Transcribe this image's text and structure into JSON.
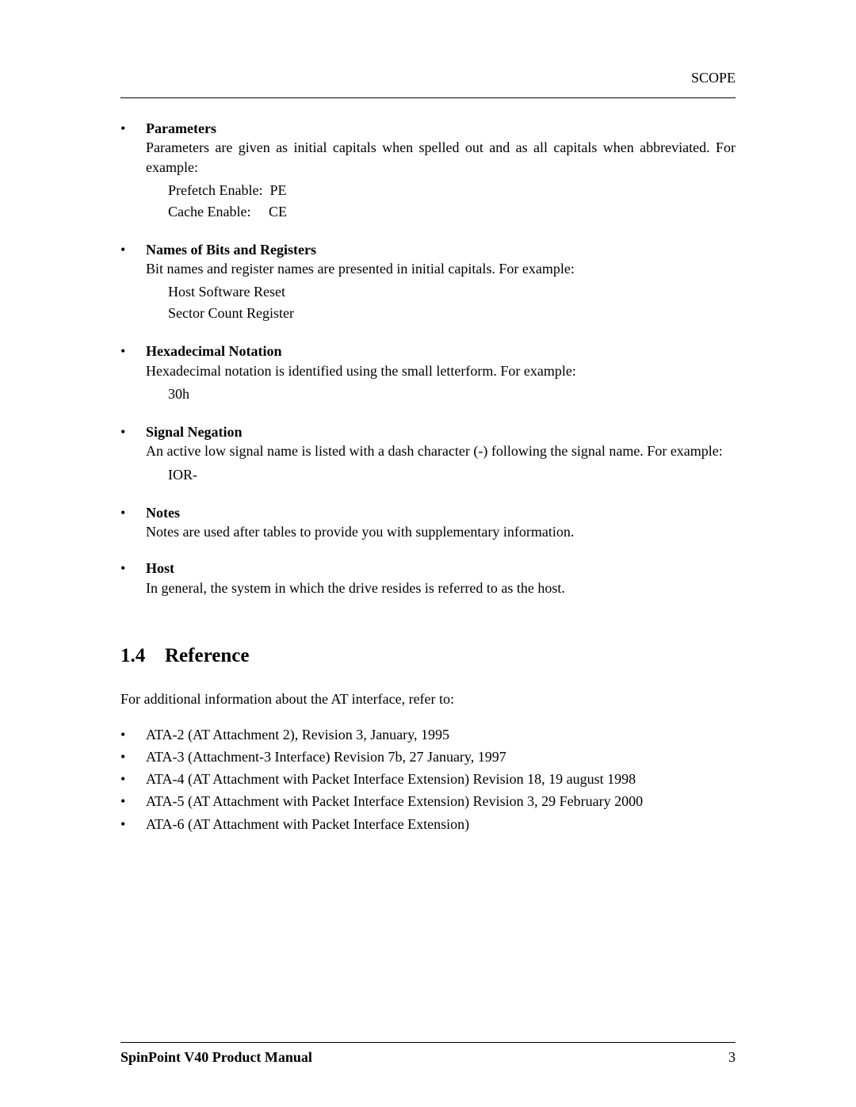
{
  "header": {
    "label": "SCOPE"
  },
  "conventions": [
    {
      "title": "Parameters",
      "desc": "Parameters are given as initial capitals when spelled out and as all capitals when abbreviated. For example:",
      "examples": [
        "Prefetch Enable:  PE",
        "Cache Enable:     CE"
      ],
      "justify": true
    },
    {
      "title": "Names of Bits and Registers",
      "desc": "Bit names and register names are presented in initial capitals. For example:",
      "examples": [
        "Host Software Reset",
        "Sector Count Register"
      ]
    },
    {
      "title": "Hexadecimal Notation",
      "desc": "Hexadecimal notation is identified using the small letterform. For example:",
      "examples": [
        "30h"
      ]
    },
    {
      "title": "Signal Negation",
      "desc": "An active low signal name is listed with a dash character (-) following the signal name. For example:",
      "examples": [
        "IOR-"
      ]
    },
    {
      "title": "Notes",
      "desc": "Notes are used after tables to provide you with supplementary information.",
      "examples": []
    },
    {
      "title": "Host",
      "desc": "In general, the system in which the drive resides is referred to as the host.",
      "examples": []
    }
  ],
  "section": {
    "number": "1.4",
    "title": "Reference",
    "intro": "For additional information about the AT interface, refer to:",
    "refs": [
      "ATA-2 (AT Attachment 2), Revision 3, January, 1995",
      "ATA-3 (Attachment-3 Interface) Revision 7b, 27 January, 1997",
      "ATA-4 (AT Attachment with Packet Interface Extension) Revision 18, 19 august 1998",
      "ATA-5 (AT Attachment with Packet Interface Extension) Revision 3, 29 February 2000",
      "ATA-6 (AT Attachment with Packet Interface Extension)"
    ]
  },
  "footer": {
    "title": "SpinPoint V40 Product Manual",
    "page": "3"
  },
  "style": {
    "bullet_glyph": "•"
  }
}
